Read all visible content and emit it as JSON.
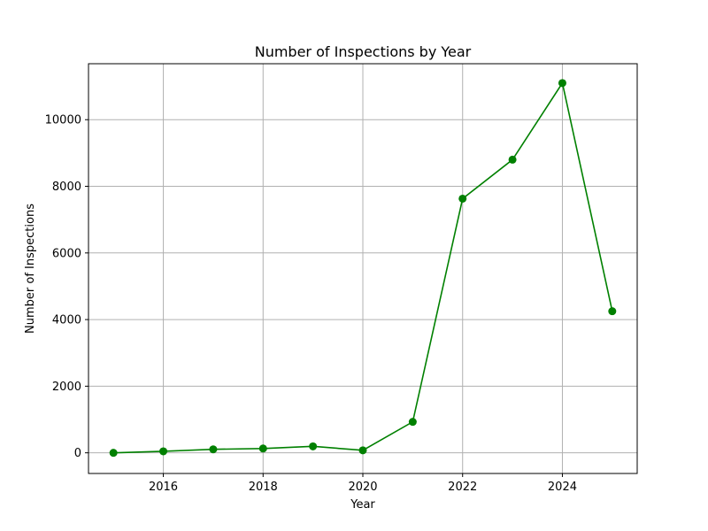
{
  "chart_data": {
    "type": "line",
    "title": "Number of Inspections by Year",
    "xlabel": "Year",
    "ylabel": "Number of Inspections",
    "xlim": [
      2014.5,
      2025.5
    ],
    "ylim": [
      -620,
      11680
    ],
    "xticks": [
      2016,
      2018,
      2020,
      2022,
      2024
    ],
    "xtick_labels": [
      "2016",
      "2018",
      "2020",
      "2022",
      "2024"
    ],
    "yticks": [
      0,
      2000,
      4000,
      6000,
      8000,
      10000
    ],
    "ytick_labels": [
      "0",
      "2000",
      "4000",
      "6000",
      "8000",
      "10000"
    ],
    "grid": true,
    "series": [
      {
        "color": "#008000",
        "marker": "circle",
        "x": [
          2015,
          2016,
          2017,
          2018,
          2019,
          2020,
          2021,
          2022,
          2023,
          2024,
          2025
        ],
        "y": [
          0,
          45,
          105,
          130,
          195,
          75,
          930,
          7630,
          8800,
          11100,
          4250
        ]
      }
    ]
  }
}
